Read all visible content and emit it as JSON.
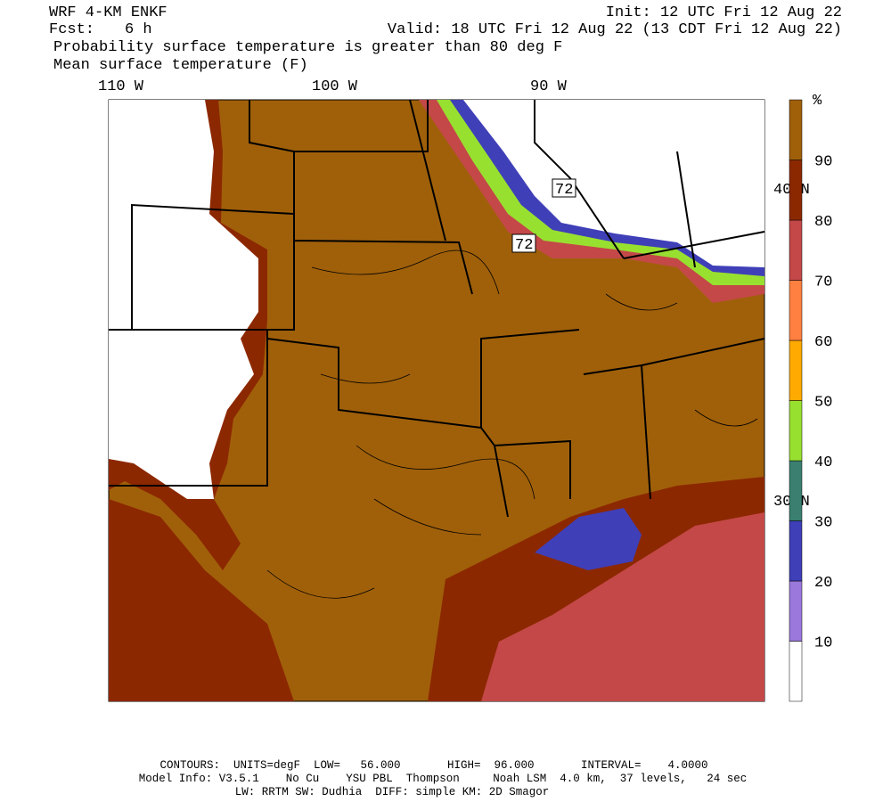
{
  "header": {
    "model": "WRF 4-KM ENKF",
    "init": "Init: 12 UTC Fri 12 Aug 22",
    "fcst_label": "Fcst:",
    "fcst_hours": "6 h",
    "valid": "Valid: 18 UTC Fri 12 Aug 22 (13 CDT Fri 12 Aug 22)",
    "field1": "Probability surface temperature is greater than 80 deg F",
    "field2": "Mean surface temperature (F)"
  },
  "map": {
    "longitudes": [
      "110 W",
      "100 W",
      "90 W"
    ],
    "latitudes": [
      "40 N",
      "30 N"
    ],
    "contour_labels": [
      "72",
      "72"
    ]
  },
  "colorbar": {
    "unit": "%",
    "levels": [
      10,
      20,
      30,
      40,
      50,
      60,
      70,
      80,
      90
    ],
    "colors": [
      "#ffffff",
      "#9a78dc",
      "#3f3fb8",
      "#3a7f70",
      "#98e030",
      "#ffaa00",
      "#ff8040",
      "#c44848",
      "#8c2800",
      "#a0600a"
    ]
  },
  "footer": {
    "line1": "CONTOURS:  UNITS=degF  LOW=   56.000       HIGH=  96.000       INTERVAL=    4.0000",
    "line2": "Model Info: V3.5.1    No Cu    YSU PBL  Thompson     Noah LSM  4.0 km,  37 levels,   24 sec",
    "line3": "LW: RRTM SW: Dudhia  DIFF: simple KM: 2D Smagor"
  }
}
